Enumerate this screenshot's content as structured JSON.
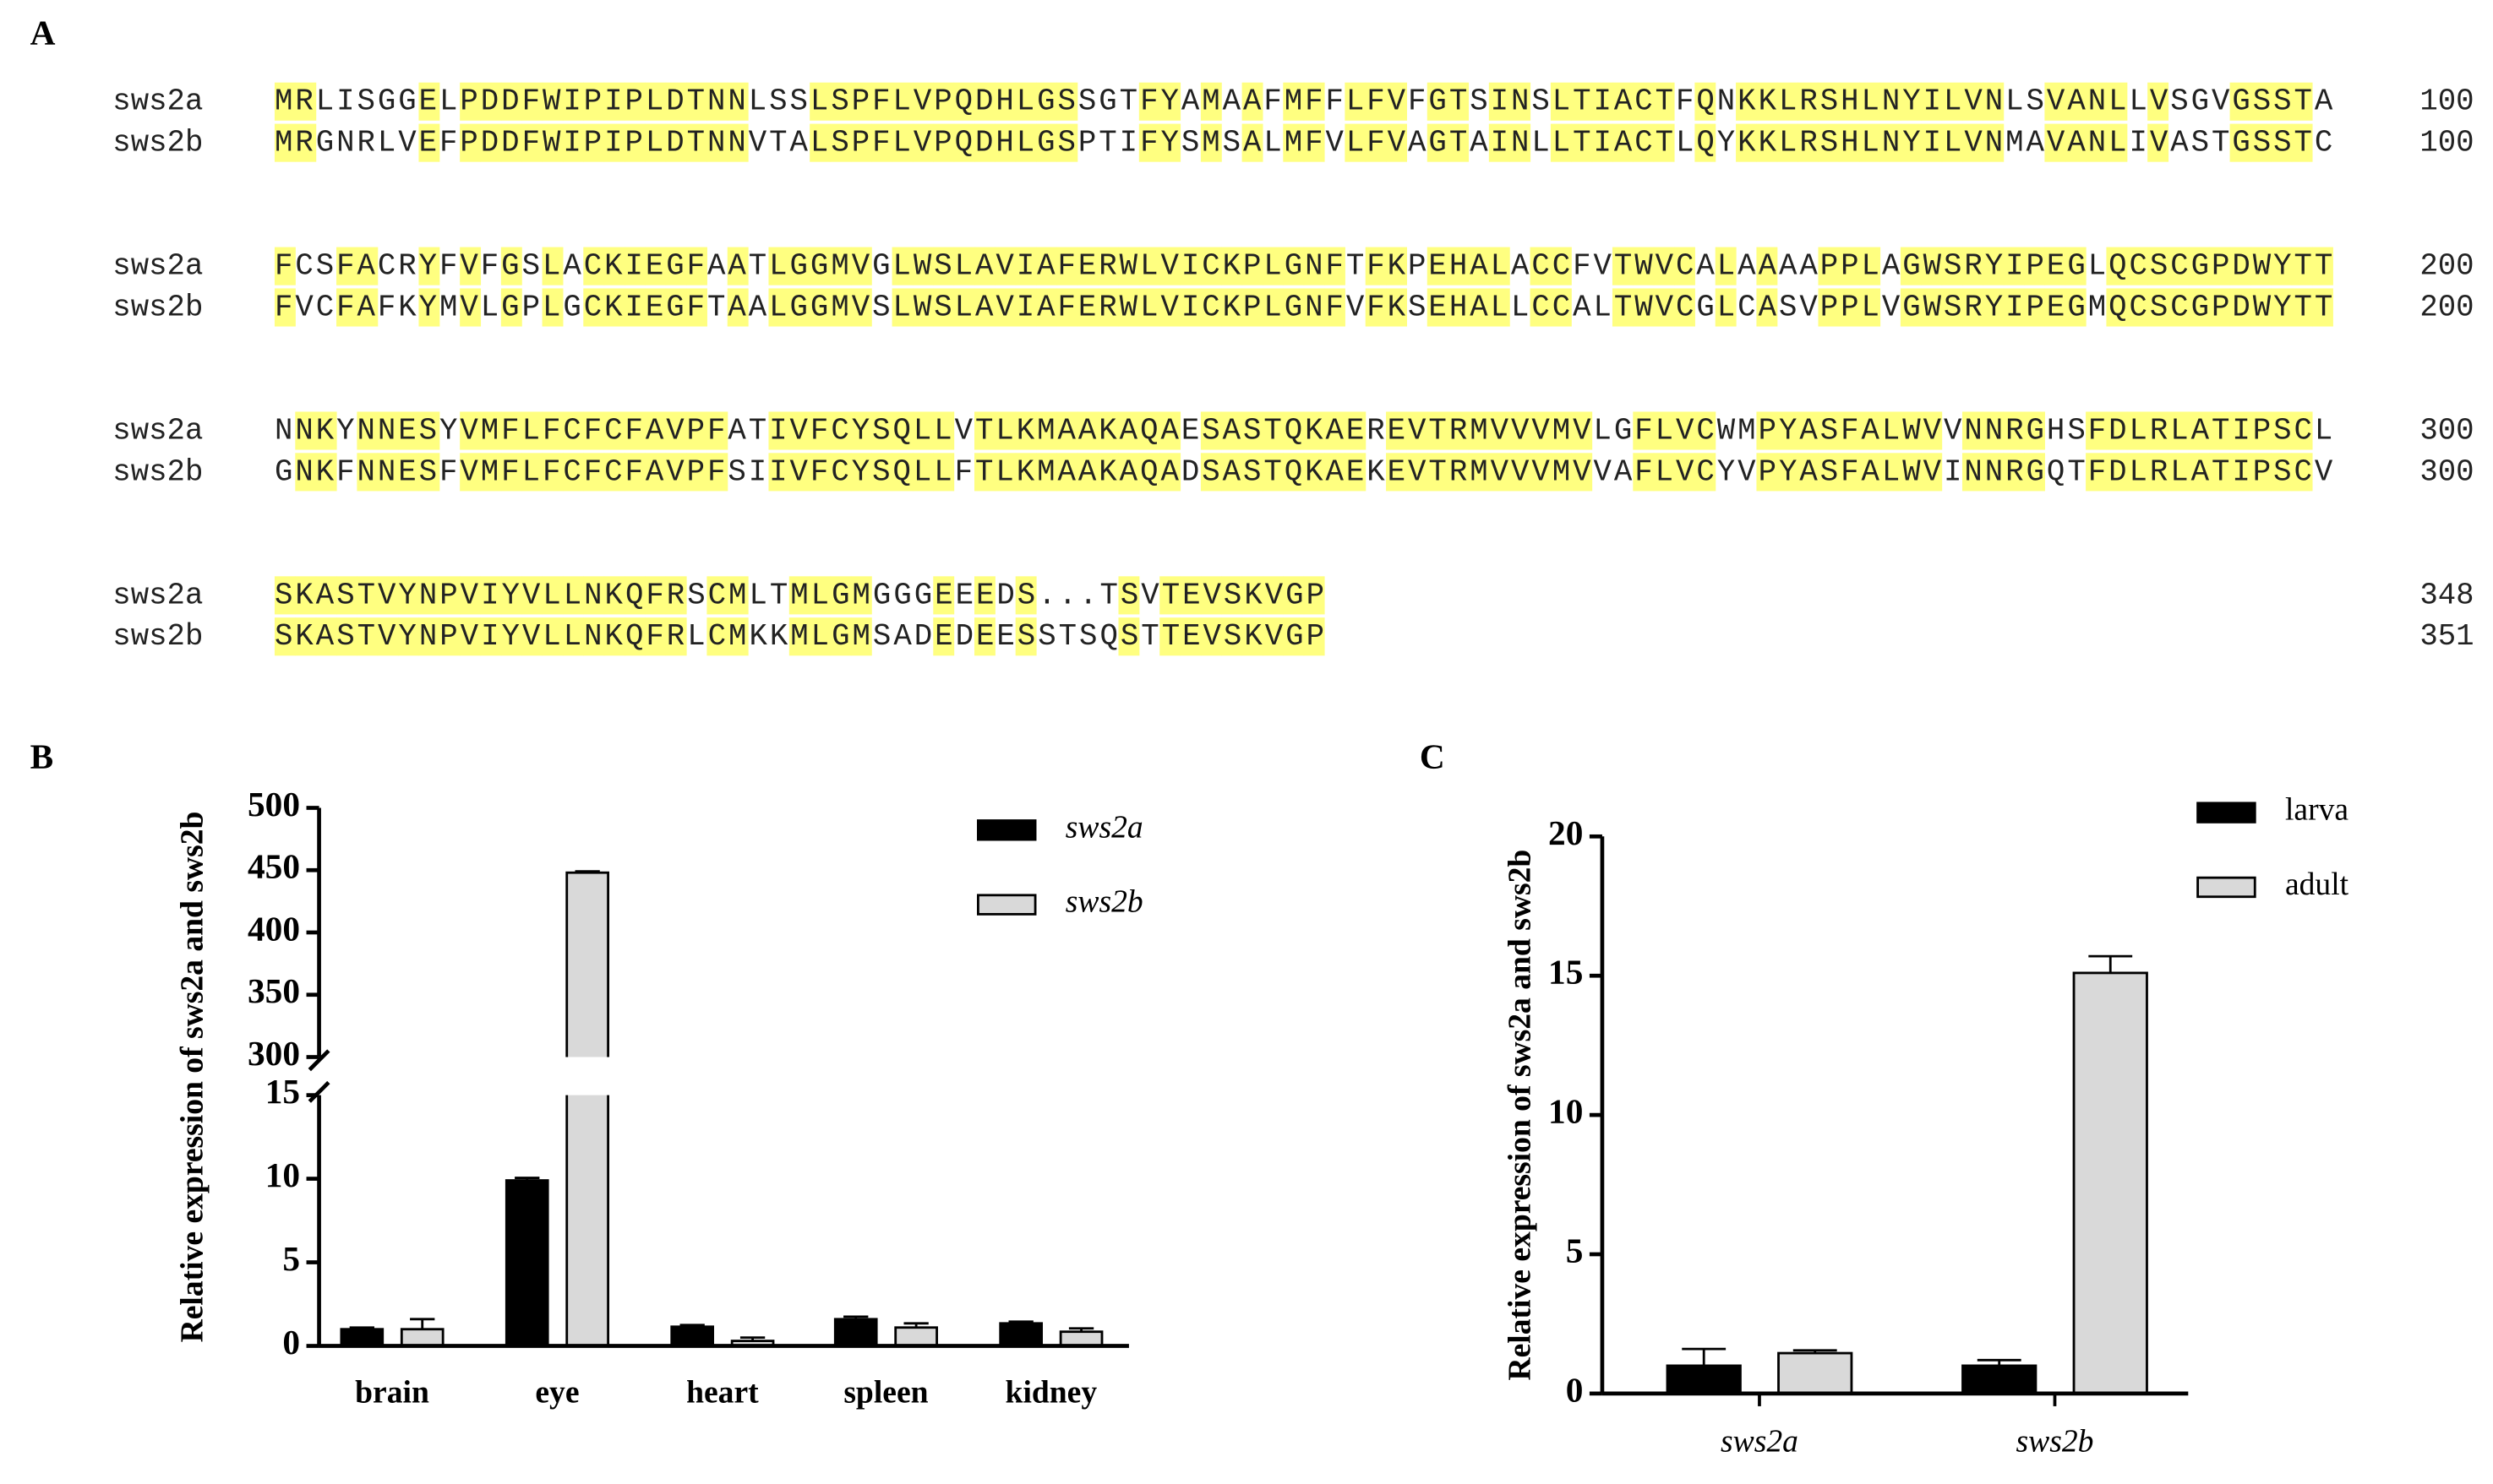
{
  "panel_labels": [
    "A",
    "B",
    "C"
  ],
  "alignment": {
    "rows": [
      {
        "seqs": [
          {
            "name": "sws2a",
            "sequence": "MRLISGGELPDDFWIPIPLDTNNLSSLSPFLVPQDHLGSSGTFYAMAAFMFFLFVFGTSINSLTIACTFQNKKLRSHLNYILVNLSVANLLVSGVGSSTA",
            "end": 100
          },
          {
            "name": "sws2b",
            "sequence": "MRGNRLVEFPDDFWIPIPLDTNNVTALSPFLVPQDHLGSPTIFYSMSALMFVLFVAGTAINLLTIACTLQYKKLRSHLNYILVNMAVANLIVASTGSSTC",
            "end": 100
          }
        ]
      },
      {
        "seqs": [
          {
            "name": "sws2a",
            "sequence": "FCSFACRYFVFGSLACKIEGFAATLGGMVGLWSLAVIAFERWLVICKPLGNFTFKPEHALACCFVTWVCALAAAAPPLAGWSRYIPEGLQCSCGPDWYTT",
            "end": 200
          },
          {
            "name": "sws2b",
            "sequence": "FVCFAFKYMVLGPLGCKIEGFTAALGGMVSLWSLAVIAFERWLVICKPLGNFVFKSEHALLCCALTWVCGLCASVPPLVGWSRYIPEGMQCSCGPDWYTT",
            "end": 200
          }
        ]
      },
      {
        "seqs": [
          {
            "name": "sws2a",
            "sequence": "NNKYNNESYVMFLFCFCFAVPFATIVFCYSQLLVTLKMAAKAQAESASTQKAEREVTRMVVVMVLGFLVCWMPYASFALWVVNNRGHSFDLRLATIPSCL",
            "end": 300
          },
          {
            "name": "sws2b",
            "sequence": "GNKFNNESFVMFLFCFCFAVPFSIIVFCYSQLLFTLKMAAKAQADSASTQKAEKEVTRMVVVMVVAFLVCYVPYASFALWVINNRGQTFDLRLATIPSCV",
            "end": 300
          }
        ]
      },
      {
        "seqs": [
          {
            "name": "sws2a",
            "sequence": "SKASTVYNPVIYVLLNKQFRSCMLTMLGMGGGEEEDS...TSVTEVSKVGP",
            "end": 348
          },
          {
            "name": "sws2b",
            "sequence": "SKASTVYNPVIYVLLNKQFRLCMKKMLGMSADEDEESSTSQSTTEVSKVGP",
            "end": 351
          }
        ]
      }
    ]
  },
  "chart_data": [
    {
      "type": "bar",
      "ylabel": "Relative expression of sws2a and sws2b",
      "categories": [
        "brain",
        "eye",
        "heart",
        "spleen",
        "kidney"
      ],
      "series": [
        {
          "name": "sws2a",
          "color": "#000000",
          "values": [
            1.0,
            9.9,
            1.15,
            1.6,
            1.35
          ],
          "errors": [
            0.1,
            0.15,
            0.1,
            0.15,
            0.1
          ]
        },
        {
          "name": "sws2b",
          "color": "#d9d9d9",
          "values": [
            1.0,
            448,
            0.3,
            1.1,
            0.85
          ],
          "errors": [
            0.6,
            1,
            0.2,
            0.25,
            0.2
          ]
        }
      ],
      "ylim": [
        0,
        500
      ],
      "axis_break": [
        15,
        300
      ],
      "yticks": [
        0,
        5,
        10,
        15,
        300,
        350,
        400,
        450,
        500
      ],
      "legend": "upper right"
    },
    {
      "type": "bar",
      "ylabel": "Relative expression of sws2a and sws2b",
      "categories": [
        "sws2a",
        "sws2b"
      ],
      "series": [
        {
          "name": "larva",
          "color": "#000000",
          "values": [
            1.0,
            1.0
          ],
          "errors": [
            0.6,
            0.2
          ]
        },
        {
          "name": "adult",
          "color": "#d9d9d9",
          "values": [
            1.45,
            15.1
          ],
          "errors": [
            0.1,
            0.6
          ]
        }
      ],
      "ylim": [
        0,
        20
      ],
      "yticks": [
        0,
        5,
        10,
        15,
        20
      ],
      "legend": "upper right"
    }
  ]
}
